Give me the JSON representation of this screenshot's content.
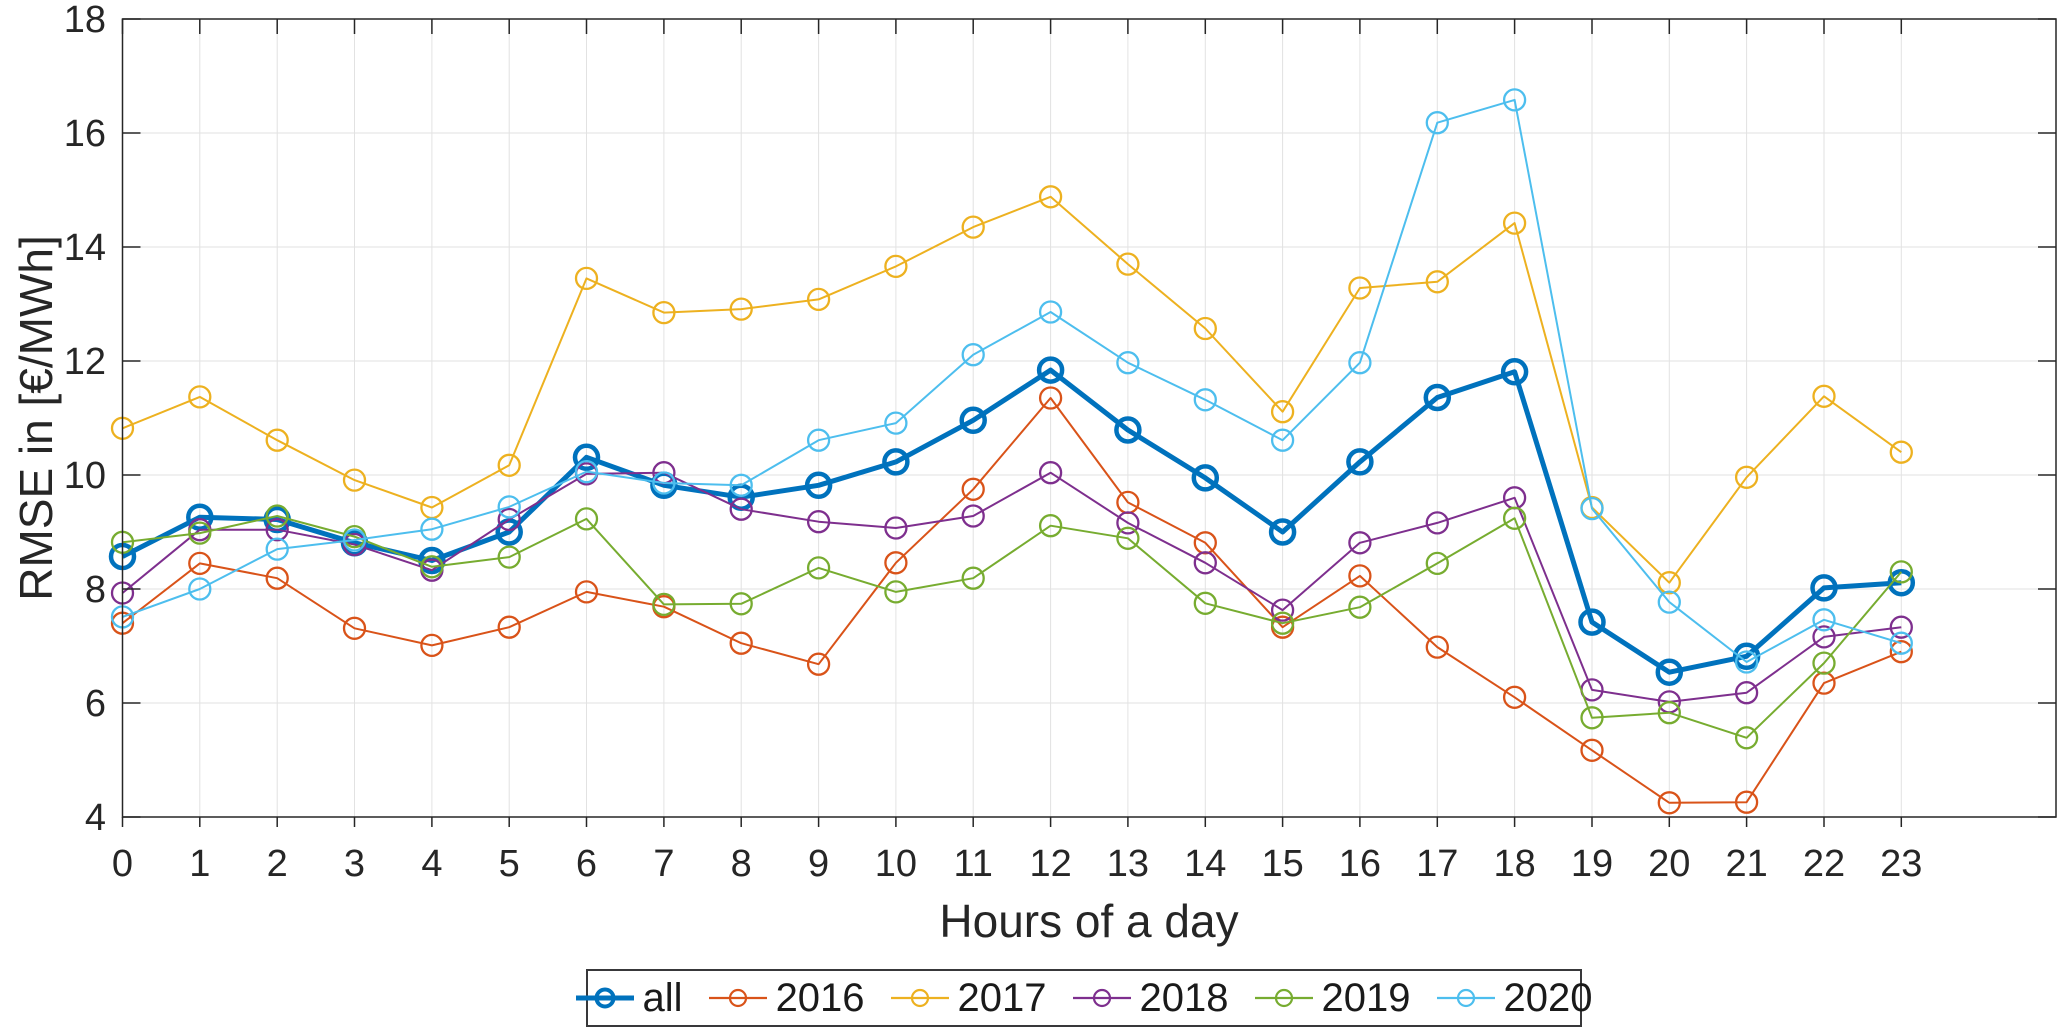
{
  "figure": {
    "background": "#ffffff",
    "axis_color": "#262626",
    "grid_color": "#e2e2e2"
  },
  "chart_data": {
    "type": "line",
    "title": "",
    "xlabel": "Hours of a day",
    "ylabel": "RMSE in [€/MWh]",
    "x": [
      0,
      1,
      2,
      3,
      4,
      5,
      6,
      7,
      8,
      9,
      10,
      11,
      12,
      13,
      14,
      15,
      16,
      17,
      18,
      19,
      20,
      21,
      22,
      23
    ],
    "xlim": [
      0,
      25
    ],
    "ylim": [
      4,
      18
    ],
    "yticks": [
      4,
      6,
      8,
      10,
      12,
      14,
      16,
      18
    ],
    "grid": true,
    "legend_position": "below",
    "series": [
      {
        "name": "all",
        "color": "#0072BD",
        "line_width": 5,
        "values": [
          8.57,
          9.26,
          9.22,
          8.81,
          8.5,
          9.0,
          10.31,
          9.82,
          9.61,
          9.82,
          10.23,
          10.96,
          11.84,
          10.79,
          9.95,
          9.0,
          10.23,
          11.36,
          11.81,
          7.42,
          6.54,
          6.82,
          8.02,
          8.11
        ]
      },
      {
        "name": "2016",
        "color": "#D95319",
        "line_width": 2,
        "values": [
          7.4,
          8.45,
          8.19,
          7.31,
          7.01,
          7.33,
          7.95,
          7.69,
          7.05,
          6.68,
          8.46,
          9.75,
          11.35,
          9.52,
          8.81,
          7.33,
          8.23,
          6.98,
          6.1,
          5.17,
          4.25,
          4.26,
          6.35,
          6.9
        ]
      },
      {
        "name": "2017",
        "color": "#EDB120",
        "line_width": 2,
        "values": [
          10.82,
          11.37,
          10.61,
          9.91,
          9.43,
          10.17,
          13.45,
          12.85,
          12.91,
          13.08,
          13.66,
          14.35,
          14.88,
          13.7,
          12.57,
          11.11,
          13.28,
          13.39,
          14.42,
          9.43,
          8.11,
          9.96,
          11.38,
          10.4
        ]
      },
      {
        "name": "2018",
        "color": "#7E2F8E",
        "line_width": 2,
        "values": [
          7.93,
          9.04,
          9.04,
          8.78,
          8.33,
          9.22,
          10.02,
          10.04,
          9.4,
          9.18,
          9.07,
          9.28,
          10.04,
          9.16,
          8.46,
          7.63,
          8.81,
          9.16,
          9.6,
          6.23,
          6.02,
          6.18,
          7.16,
          7.33
        ]
      },
      {
        "name": "2019",
        "color": "#77AC30",
        "line_width": 2,
        "values": [
          8.82,
          8.98,
          9.28,
          8.92,
          8.39,
          8.56,
          9.23,
          7.73,
          7.74,
          8.37,
          7.95,
          8.19,
          9.11,
          8.89,
          7.75,
          7.4,
          7.68,
          8.45,
          9.24,
          5.74,
          5.83,
          5.39,
          6.7,
          8.3
        ]
      },
      {
        "name": "2020",
        "color": "#4DBEEE",
        "line_width": 2,
        "values": [
          7.51,
          8.0,
          8.7,
          8.86,
          9.05,
          9.44,
          10.06,
          9.86,
          9.82,
          10.61,
          10.91,
          12.11,
          12.86,
          11.97,
          11.32,
          10.61,
          11.97,
          16.18,
          16.58,
          9.41,
          7.77,
          6.72,
          7.46,
          7.05
        ]
      }
    ]
  }
}
